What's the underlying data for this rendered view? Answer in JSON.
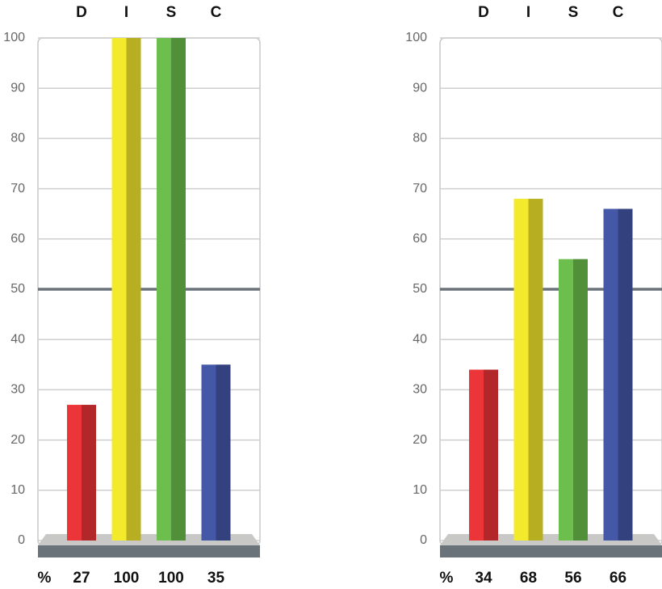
{
  "chart_data": [
    {
      "type": "bar",
      "categories": [
        "D",
        "I",
        "S",
        "C"
      ],
      "values": [
        27,
        100,
        100,
        35
      ],
      "colors": [
        "#ec3538",
        "#f4ea2c",
        "#6cbf4c",
        "#4558a8"
      ],
      "ylim": [
        0,
        100
      ],
      "yticks": [
        0,
        10,
        20,
        30,
        40,
        50,
        60,
        70,
        80,
        90,
        100
      ],
      "grid": true,
      "reference_line": 50,
      "value_row_label": "%"
    },
    {
      "type": "bar",
      "categories": [
        "D",
        "I",
        "S",
        "C"
      ],
      "values": [
        34,
        68,
        56,
        66
      ],
      "colors": [
        "#ec3538",
        "#f4ea2c",
        "#6cbf4c",
        "#4558a8"
      ],
      "ylim": [
        0,
        100
      ],
      "yticks": [
        0,
        10,
        20,
        30,
        40,
        50,
        60,
        70,
        80,
        90,
        100
      ],
      "grid": true,
      "reference_line": 50,
      "value_row_label": "%"
    }
  ]
}
